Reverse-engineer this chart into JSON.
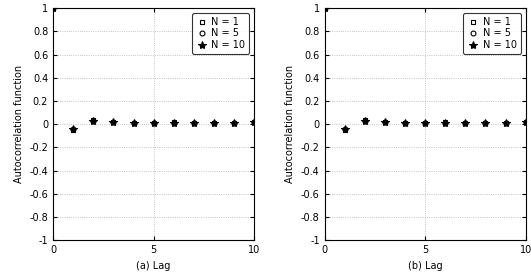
{
  "title_a": "(a) Lag",
  "title_b": "(b) Lag",
  "ylabel": "Autocorrelation function",
  "xlim": [
    0,
    10
  ],
  "ylim": [
    -1,
    1
  ],
  "xticks": [
    0,
    5,
    10
  ],
  "yticks": [
    -1,
    -0.8,
    -0.6,
    -0.4,
    -0.2,
    0,
    0.2,
    0.4,
    0.6,
    0.8,
    1
  ],
  "lags": [
    0,
    1,
    2,
    3,
    4,
    5,
    6,
    7,
    8,
    9,
    10
  ],
  "N1_acf_a": [
    1.0,
    -0.05,
    0.04,
    0.02,
    0.01,
    0.01,
    0.02,
    0.01,
    0.01,
    0.01,
    0.02
  ],
  "N5_acf_a": [
    1.0,
    -0.04,
    0.03,
    0.02,
    0.01,
    0.01,
    0.01,
    0.01,
    0.01,
    0.01,
    0.02
  ],
  "N10_acf_a": [
    1.0,
    -0.04,
    0.03,
    0.02,
    0.01,
    0.01,
    0.01,
    0.01,
    0.01,
    0.01,
    0.02
  ],
  "N1_acf_b": [
    1.0,
    -0.05,
    0.04,
    0.02,
    0.01,
    0.01,
    0.02,
    0.01,
    0.01,
    0.01,
    0.02
  ],
  "N5_acf_b": [
    1.0,
    -0.04,
    0.03,
    0.02,
    0.01,
    0.01,
    0.01,
    0.01,
    0.01,
    0.01,
    0.02
  ],
  "N10_acf_b": [
    1.0,
    -0.04,
    0.03,
    0.02,
    0.01,
    0.01,
    0.01,
    0.01,
    0.01,
    0.01,
    0.02
  ],
  "legend_labels": [
    "N = 1",
    "N = 5",
    "N = 10"
  ],
  "markers": [
    "s",
    "o",
    "*"
  ],
  "markersizes": [
    3.5,
    3.5,
    5
  ],
  "bg_color": "#ffffff",
  "grid_color": "#b0b0b0",
  "fontsize_label": 7,
  "fontsize_tick": 7,
  "fontsize_legend": 7
}
